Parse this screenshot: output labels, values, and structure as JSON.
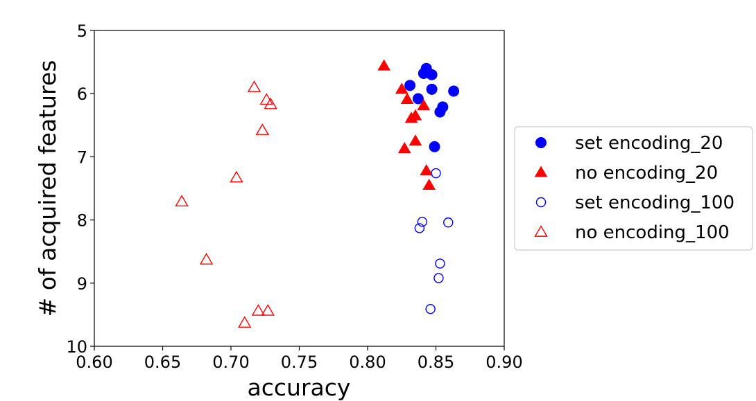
{
  "chart_data": {
    "type": "scatter",
    "xlabel": "accuracy",
    "ylabel": "# of acquired features",
    "xlim": [
      0.6,
      0.9
    ],
    "ylim": [
      5,
      10
    ],
    "y_inverted": true,
    "grid": false,
    "legend_position": "right, outside plot",
    "x_ticks": [
      "0.60",
      "0.65",
      "0.70",
      "0.75",
      "0.80",
      "0.85",
      "0.90"
    ],
    "y_ticks": [
      "5",
      "6",
      "7",
      "8",
      "9",
      "10"
    ],
    "series": [
      {
        "name": "set encoding_20",
        "marker": "circle",
        "filled": true,
        "color": "#0000ff",
        "points": [
          [
            0.843,
            5.6
          ],
          [
            0.841,
            5.68
          ],
          [
            0.847,
            5.7
          ],
          [
            0.831,
            5.87
          ],
          [
            0.847,
            5.93
          ],
          [
            0.863,
            5.96
          ],
          [
            0.837,
            6.08
          ],
          [
            0.855,
            6.21
          ],
          [
            0.853,
            6.29
          ],
          [
            0.849,
            6.84
          ]
        ]
      },
      {
        "name": "no encoding_20",
        "marker": "triangle",
        "filled": true,
        "color": "#ff0000",
        "points": [
          [
            0.812,
            5.56
          ],
          [
            0.825,
            5.93
          ],
          [
            0.829,
            6.09
          ],
          [
            0.841,
            6.19
          ],
          [
            0.835,
            6.35
          ],
          [
            0.832,
            6.39
          ],
          [
            0.835,
            6.75
          ],
          [
            0.827,
            6.87
          ],
          [
            0.843,
            7.22
          ],
          [
            0.845,
            7.45
          ]
        ]
      },
      {
        "name": "set encoding_100",
        "marker": "circle",
        "filled": false,
        "color": "#0000ff",
        "points": [
          [
            0.85,
            7.26
          ],
          [
            0.84,
            8.03
          ],
          [
            0.859,
            8.04
          ],
          [
            0.838,
            8.13
          ],
          [
            0.853,
            8.69
          ],
          [
            0.852,
            8.92
          ],
          [
            0.846,
            9.41
          ]
        ]
      },
      {
        "name": "no encoding_100",
        "marker": "triangle",
        "filled": false,
        "color": "#ff0000",
        "points": [
          [
            0.717,
            5.9
          ],
          [
            0.726,
            6.1
          ],
          [
            0.729,
            6.17
          ],
          [
            0.723,
            6.58
          ],
          [
            0.704,
            7.33
          ],
          [
            0.664,
            7.71
          ],
          [
            0.682,
            8.63
          ],
          [
            0.72,
            9.44
          ],
          [
            0.727,
            9.44
          ],
          [
            0.71,
            9.63
          ]
        ]
      }
    ]
  }
}
